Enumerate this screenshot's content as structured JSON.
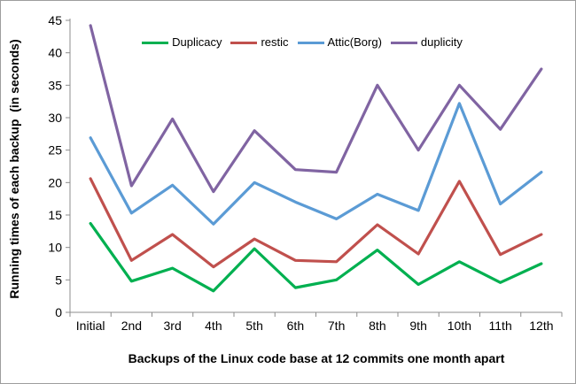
{
  "chart_data": {
    "type": "line",
    "title": "",
    "xlabel": "Backups of the Linux code base at 12 commits one month apart",
    "ylabel": "Running times of each backup  (in seconds)",
    "categories": [
      "Initial",
      "2nd",
      "3rd",
      "4th",
      "5th",
      "6th",
      "7th",
      "8th",
      "9th",
      "10th",
      "11th",
      "12th"
    ],
    "series": [
      {
        "name": "Duplicacy",
        "color": "#00B050",
        "values": [
          13.7,
          4.8,
          6.8,
          3.3,
          9.8,
          3.8,
          5.0,
          9.6,
          4.3,
          7.8,
          4.6,
          7.5
        ]
      },
      {
        "name": "restic",
        "color": "#C0504D",
        "values": [
          20.6,
          8.0,
          12.0,
          7.0,
          11.3,
          8.0,
          7.8,
          13.5,
          9.0,
          20.2,
          8.9,
          12.0
        ]
      },
      {
        "name": "Attic(Borg)",
        "color": "#5B9BD5",
        "values": [
          26.9,
          15.3,
          19.6,
          13.6,
          20.0,
          17.0,
          14.4,
          18.2,
          15.7,
          32.2,
          16.7,
          21.6
        ]
      },
      {
        "name": "duplicity",
        "color": "#8064A2",
        "values": [
          44.2,
          19.5,
          29.8,
          18.6,
          28.0,
          22.0,
          21.6,
          35.0,
          25.0,
          35.0,
          28.2,
          37.5
        ]
      }
    ],
    "ylim": [
      0,
      45
    ],
    "ytick_step": 5,
    "ytick_labels": [
      "0",
      "5",
      "10",
      "15",
      "20",
      "25",
      "30",
      "35",
      "40",
      "45"
    ],
    "grid": false,
    "legend_position": "top-center",
    "axis_color": "#8C8C8C",
    "text_color": "#000000",
    "line_width": 3.2
  }
}
